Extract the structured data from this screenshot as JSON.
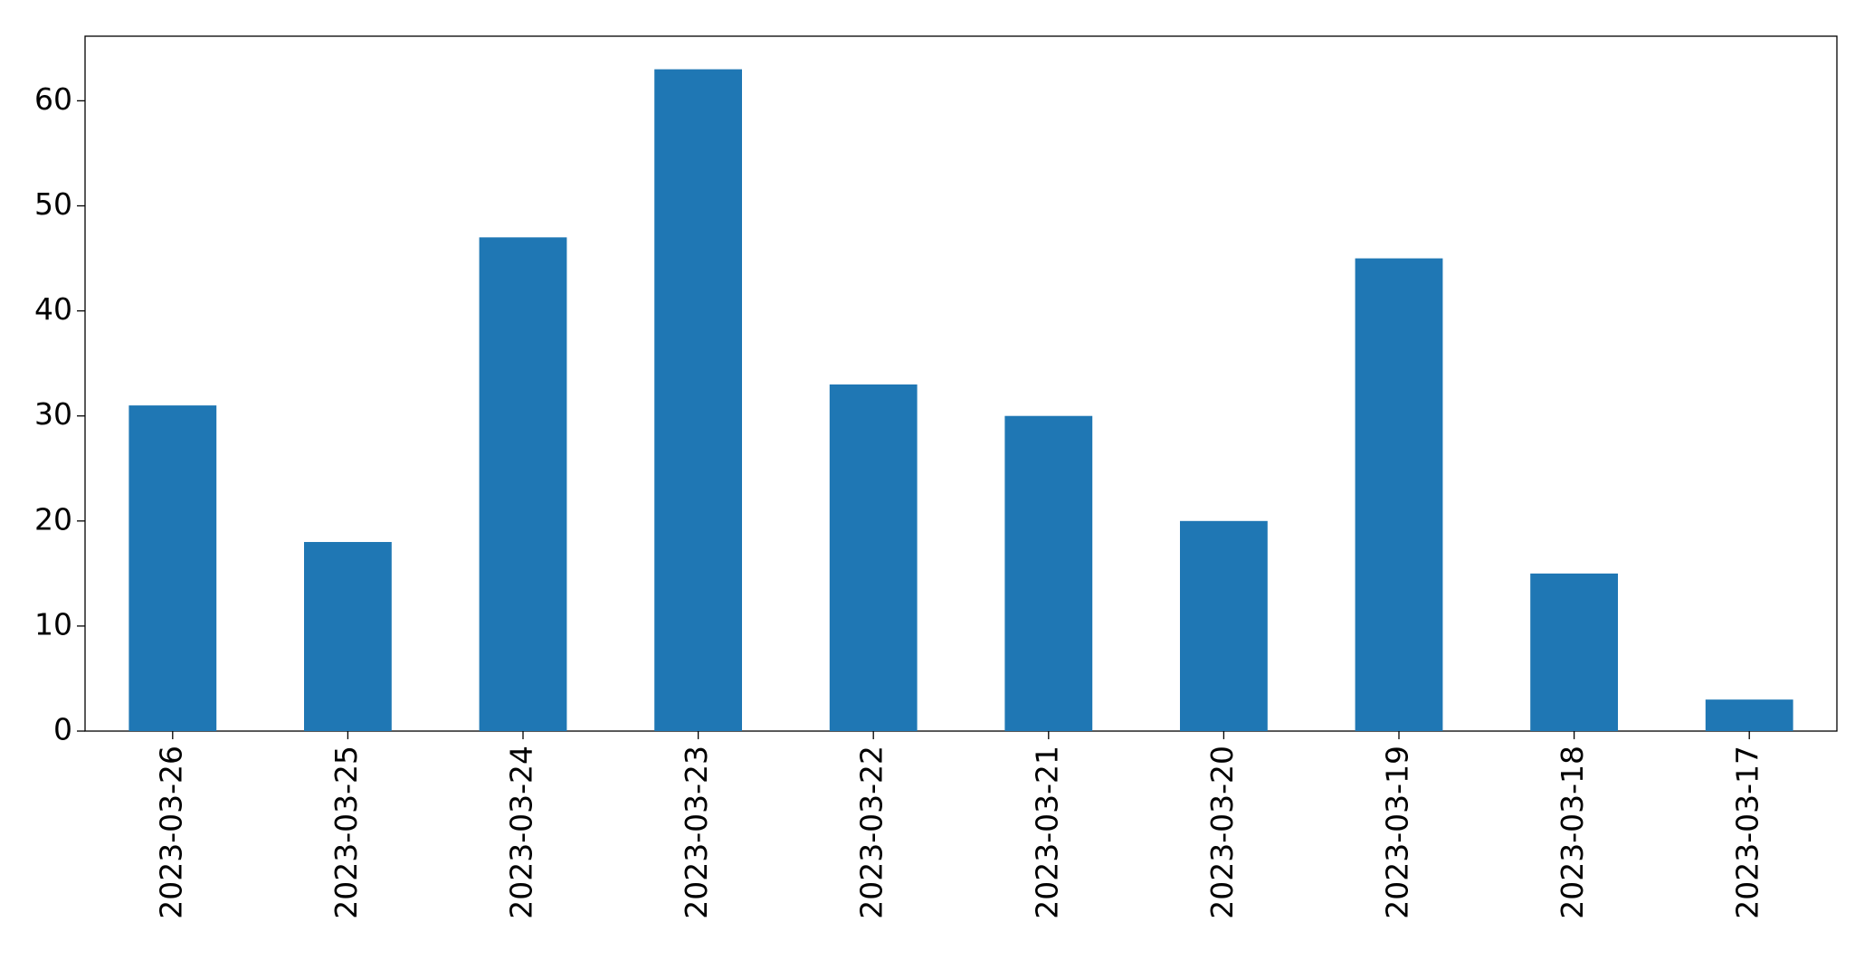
{
  "chart_data": {
    "type": "bar",
    "categories": [
      "2023-03-26",
      "2023-03-25",
      "2023-03-24",
      "2023-03-23",
      "2023-03-22",
      "2023-03-21",
      "2023-03-20",
      "2023-03-19",
      "2023-03-18",
      "2023-03-17"
    ],
    "values": [
      31,
      18,
      47,
      63,
      33,
      30,
      20,
      45,
      15,
      3
    ],
    "color": "#1f77b4",
    "ylim": [
      0,
      66.15
    ],
    "yticks": [
      0,
      10,
      20,
      30,
      40,
      50,
      60
    ],
    "grid": false
  }
}
